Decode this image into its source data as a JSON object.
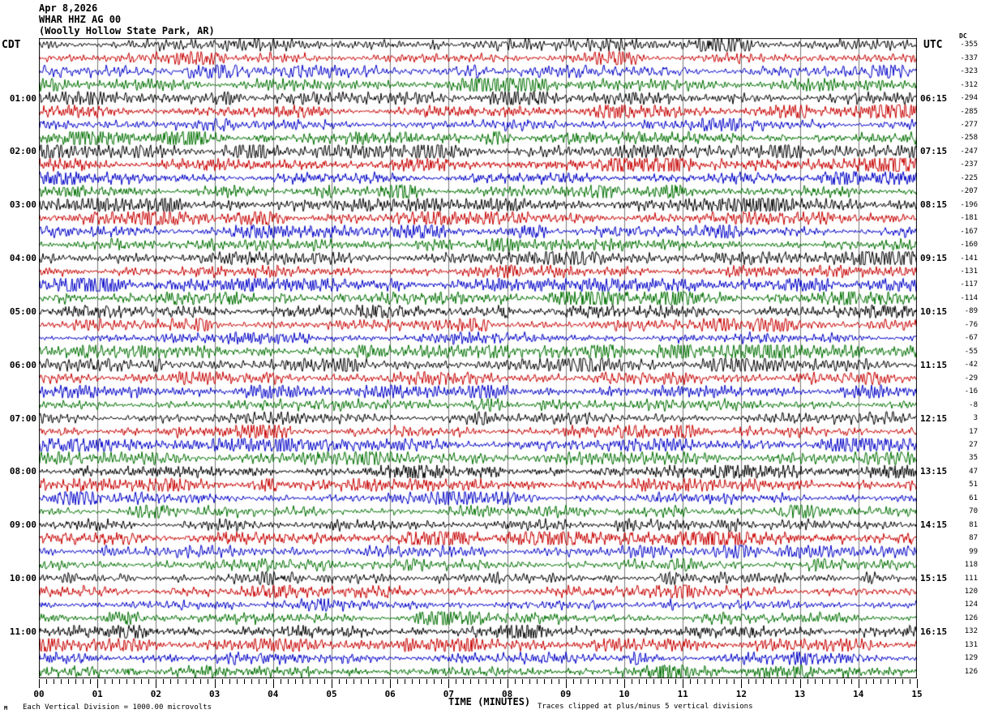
{
  "title": {
    "date": "Apr 8,2026",
    "station": "WHAR HHZ AG 00",
    "location": "(Woolly Hollow State Park, AR)"
  },
  "left_axis": {
    "header": "CDT"
  },
  "right_axis": {
    "header": "UTC",
    "dc_header": "DC"
  },
  "bottom_axis": {
    "label": "TIME (MINUTES)"
  },
  "footer": {
    "corner_mark": "M",
    "division_note": "Each Vertical Division = 1000.00 microvolts",
    "clip_note": "Traces clipped at plus/minus 5 vertical divisions"
  },
  "chart_data": {
    "type": "line",
    "subtype": "helicorder-seismogram",
    "title": "Apr 8,2026 WHAR HHZ AG 00 (Woolly Hollow State Park, AR)",
    "xlabel": "TIME (MINUTES)",
    "x_range_minutes": [
      0,
      15
    ],
    "x_major_tick_minutes": 1,
    "x_minor_ticks_per_major": 8,
    "x_tick_labels": [
      "00",
      "01",
      "02",
      "03",
      "04",
      "05",
      "06",
      "07",
      "08",
      "09",
      "10",
      "11",
      "12",
      "13",
      "14",
      "15"
    ],
    "rows": 48,
    "minutes_per_row": 15,
    "hour_label_row_step": 4,
    "first_labeled_row": 4,
    "left_time_labels_cdt": [
      "01:00",
      "02:00",
      "03:00",
      "04:00",
      "05:00",
      "06:00",
      "07:00",
      "08:00",
      "09:00",
      "10:00",
      "11:00"
    ],
    "right_time_labels_utc": [
      "06:15",
      "07:15",
      "08:15",
      "09:15",
      "10:15",
      "11:15",
      "12:15",
      "13:15",
      "14:15",
      "15:15",
      "16:15"
    ],
    "dc_offsets": [
      -355,
      -337,
      -323,
      -312,
      -294,
      -285,
      -277,
      -258,
      -247,
      -237,
      -225,
      -207,
      -196,
      -181,
      -167,
      -160,
      -141,
      -131,
      -117,
      -114,
      -89,
      -76,
      -67,
      -55,
      -42,
      -29,
      -16,
      -8,
      3,
      17,
      27,
      35,
      47,
      51,
      61,
      70,
      81,
      87,
      99,
      118,
      111,
      120,
      124,
      126,
      132,
      131,
      129,
      126
    ],
    "trace_color_cycle": [
      "#000000",
      "#c80000",
      "#0000c8",
      "#007000"
    ],
    "grid_color": "#777777",
    "border_color": "#000000",
    "volts_per_division": "1000.00 microvolts",
    "clipping": "plus/minus 5 vertical divisions",
    "waveform_note": "continuous seismic background noise traces; clipped at +/-5 vertical divisions"
  }
}
